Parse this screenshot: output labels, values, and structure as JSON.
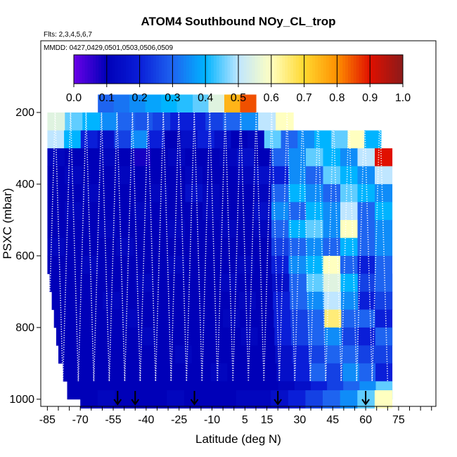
{
  "chart_data": {
    "type": "heatmap",
    "title": "ATOM4 Southbound NOy_CL_trop",
    "flights_label": "Flts: 2,3,4,5,6,7",
    "dates_label": "MMDD: 0427,0429,0501,0503,0506,0509",
    "xlabel": "Latitude (deg N)",
    "ylabel": "PSXC (mbar)",
    "xlim": [
      -88,
      92
    ],
    "ylim": [
      1020,
      0
    ],
    "x_ticks": [
      -85,
      -70,
      -55,
      -40,
      -25,
      -10,
      5,
      15,
      30,
      45,
      60,
      75
    ],
    "y_ticks": [
      200,
      400,
      600,
      800,
      1000
    ],
    "colorbar": {
      "min": 0.0,
      "max": 1.0,
      "ticks": [
        "0.0",
        "0.1",
        "0.2",
        "0.3",
        "0.4",
        "0.5",
        "0.6",
        "0.7",
        "0.8",
        "0.9",
        "1.0"
      ],
      "colors": [
        "#6a00e8",
        "#0000b8",
        "#0a1ed8",
        "#1e64f0",
        "#00b4ff",
        "#bfe6ff",
        "#ffffc0",
        "#ffd830",
        "#ff9000",
        "#e01000",
        "#8b1a1a"
      ]
    },
    "bands": [
      {
        "p": 175,
        "lat0": -62,
        "lat1": 10,
        "values": [
          0.3,
          0.32,
          0.35,
          0.38,
          0.4,
          0.42,
          0.45,
          0.55,
          0.75,
          0.85
        ]
      },
      {
        "p": 225,
        "lat0": -85,
        "lat1": 27,
        "values": [
          0.55,
          0.45,
          0.4,
          0.35,
          0.3,
          0.28,
          0.25,
          0.2,
          0.2,
          0.25,
          0.3,
          0.35,
          0.5,
          0.6
        ]
      },
      {
        "p": 275,
        "lat0": -85,
        "lat1": 67,
        "values": [
          0.5,
          0.4,
          0.2,
          0.15,
          0.25,
          0.35,
          0.2,
          0.1,
          0.15,
          0.2,
          0.15,
          0.1,
          0.12,
          0.45,
          0.3,
          0.35,
          0.4,
          0.45,
          0.6,
          0.4
        ]
      },
      {
        "p": 325,
        "lat0": -85,
        "lat1": 72,
        "values": [
          0.12,
          0.1,
          0.1,
          0.12,
          0.1,
          0.08,
          0.1,
          0.12,
          0.1,
          0.1,
          0.12,
          0.15,
          0.1,
          0.3,
          0.35,
          0.45,
          0.4,
          0.35,
          0.5,
          0.9
        ]
      },
      {
        "p": 375,
        "lat0": -85,
        "lat1": 72,
        "values": [
          0.1,
          0.12,
          0.1,
          0.1,
          0.12,
          0.1,
          0.1,
          0.1,
          0.12,
          0.1,
          0.1,
          0.12,
          0.15,
          0.2,
          0.35,
          0.3,
          0.45,
          0.4,
          0.35,
          0.5
        ]
      },
      {
        "p": 425,
        "lat0": -85,
        "lat1": 72,
        "values": [
          0.1,
          0.1,
          0.12,
          0.1,
          0.1,
          0.1,
          0.12,
          0.1,
          0.15,
          0.12,
          0.1,
          0.1,
          0.12,
          0.3,
          0.4,
          0.35,
          0.3,
          0.45,
          0.4,
          0.35
        ]
      },
      {
        "p": 475,
        "lat0": -85,
        "lat1": 72,
        "values": [
          0.1,
          0.12,
          0.1,
          0.1,
          0.1,
          0.12,
          0.1,
          0.1,
          0.1,
          0.12,
          0.1,
          0.1,
          0.15,
          0.35,
          0.3,
          0.4,
          0.35,
          0.5,
          0.3,
          0.4
        ]
      },
      {
        "p": 525,
        "lat0": -85,
        "lat1": 72,
        "values": [
          0.1,
          0.1,
          0.1,
          0.12,
          0.1,
          0.1,
          0.1,
          0.12,
          0.1,
          0.1,
          0.12,
          0.1,
          0.12,
          0.3,
          0.4,
          0.45,
          0.35,
          0.6,
          0.3,
          0.35
        ]
      },
      {
        "p": 575,
        "lat0": -85,
        "lat1": 72,
        "values": [
          0.12,
          0.1,
          0.1,
          0.1,
          0.12,
          0.1,
          0.1,
          0.1,
          0.1,
          0.1,
          0.1,
          0.1,
          0.1,
          0.25,
          0.3,
          0.35,
          0.3,
          0.4,
          0.3,
          0.35
        ]
      },
      {
        "p": 625,
        "lat0": -85,
        "lat1": 72,
        "values": [
          0.1,
          0.1,
          0.12,
          0.1,
          0.1,
          0.1,
          0.1,
          0.12,
          0.1,
          0.1,
          0.1,
          0.12,
          0.1,
          0.2,
          0.35,
          0.4,
          0.6,
          0.3,
          0.2,
          0.3
        ]
      },
      {
        "p": 675,
        "lat0": -84,
        "lat1": 72,
        "values": [
          0.1,
          0.1,
          0.1,
          0.1,
          0.1,
          0.12,
          0.1,
          0.1,
          0.1,
          0.1,
          0.12,
          0.1,
          0.1,
          0.15,
          0.3,
          0.45,
          0.55,
          0.4,
          0.25,
          0.3
        ]
      },
      {
        "p": 725,
        "lat0": -83,
        "lat1": 72,
        "values": [
          0.1,
          0.1,
          0.1,
          0.12,
          0.1,
          0.1,
          0.1,
          0.1,
          0.1,
          0.1,
          0.1,
          0.12,
          0.1,
          0.2,
          0.3,
          0.35,
          0.5,
          0.35,
          0.2,
          0.25
        ]
      },
      {
        "p": 775,
        "lat0": -82,
        "lat1": 72,
        "values": [
          0.1,
          0.1,
          0.1,
          0.1,
          0.12,
          0.1,
          0.1,
          0.1,
          0.1,
          0.1,
          0.12,
          0.1,
          0.1,
          0.2,
          0.25,
          0.3,
          0.65,
          0.3,
          0.3,
          0.2
        ]
      },
      {
        "p": 825,
        "lat0": -81,
        "lat1": 72,
        "values": [
          0.1,
          0.1,
          0.1,
          0.1,
          0.1,
          0.12,
          0.1,
          0.1,
          0.1,
          0.1,
          0.1,
          0.12,
          0.1,
          0.2,
          0.25,
          0.3,
          0.35,
          0.25,
          0.2,
          0.3
        ]
      },
      {
        "p": 875,
        "lat0": -80,
        "lat1": 72,
        "values": [
          0.1,
          0.1,
          0.1,
          0.1,
          0.1,
          0.1,
          0.1,
          0.12,
          0.1,
          0.1,
          0.1,
          0.1,
          0.1,
          0.15,
          0.2,
          0.25,
          0.3,
          0.3,
          0.25,
          0.25
        ]
      },
      {
        "p": 925,
        "lat0": -78,
        "lat1": 72,
        "values": [
          0.1,
          0.1,
          0.1,
          0.1,
          0.1,
          0.1,
          0.1,
          0.1,
          0.1,
          0.12,
          0.1,
          0.1,
          0.1,
          0.15,
          0.2,
          0.3,
          0.25,
          0.35,
          0.3,
          0.2
        ]
      },
      {
        "p": 975,
        "lat0": -76,
        "lat1": 72,
        "values": [
          0.1,
          0.1,
          0.1,
          0.1,
          0.1,
          0.1,
          0.1,
          0.1,
          0.1,
          0.1,
          0.1,
          0.1,
          0.1,
          0.12,
          0.15,
          0.2,
          0.25,
          0.3,
          0.35,
          0.45
        ]
      },
      {
        "p": 1000,
        "lat0": -70,
        "lat1": 72,
        "values": [
          0.1,
          0.12,
          0.1,
          0.1,
          0.1,
          0.12,
          0.1,
          0.1,
          0.1,
          0.12,
          0.12,
          0.15,
          0.2,
          0.25,
          0.3,
          0.35,
          0.45,
          0.6
        ]
      }
    ],
    "profiles": {
      "lat_start": -85,
      "lat_end": 70,
      "count": 44,
      "p_top": 200,
      "p_bottom": 950
    },
    "arrows": [
      -53,
      -45,
      -18,
      20,
      60
    ]
  }
}
